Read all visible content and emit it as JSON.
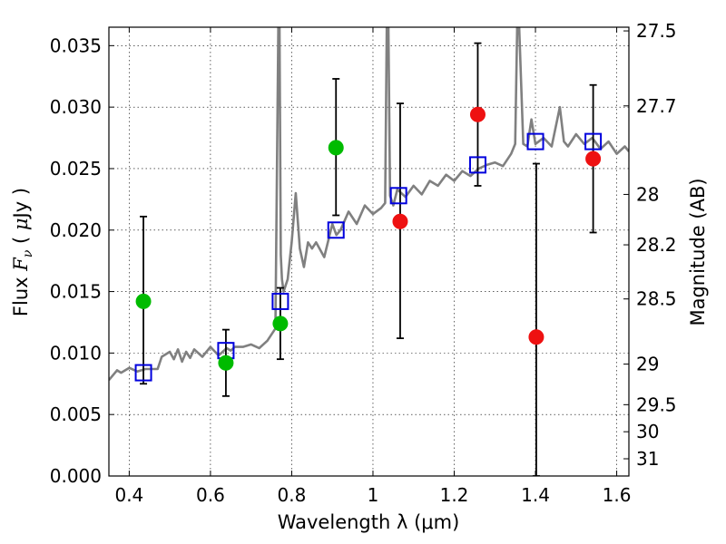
{
  "chart_data": {
    "type": "scatter",
    "xlabel": "Wavelength  λ (μm)",
    "ylabel": "Flux  F_ν  ( μJy )",
    "ylabel_right": "Magnitude (AB)",
    "xlim": [
      0.35,
      1.63
    ],
    "ylim": [
      0.0,
      0.0365
    ],
    "grid": true,
    "x_ticks": [
      0.4,
      0.6,
      0.8,
      1.0,
      1.2,
      1.4,
      1.6
    ],
    "x_tick_labels": [
      "0.4",
      "0.6",
      "0.8",
      "1",
      "1.2",
      "1.4",
      "1.6"
    ],
    "y_ticks": [
      0.0,
      0.005,
      0.01,
      0.015,
      0.02,
      0.025,
      0.03,
      0.035
    ],
    "y_tick_labels": [
      "0.000",
      "0.005",
      "0.010",
      "0.015",
      "0.020",
      "0.025",
      "0.030",
      "0.035"
    ],
    "right_ticks": [
      {
        "label": "27.5",
        "flux": 0.0362
      },
      {
        "label": "27.7",
        "flux": 0.0301
      },
      {
        "label": "28",
        "flux": 0.0229
      },
      {
        "label": "28.2",
        "flux": 0.0188
      },
      {
        "label": "28.5",
        "flux": 0.0144
      },
      {
        "label": "29",
        "flux": 0.0091
      },
      {
        "label": "29.5",
        "flux": 0.0058
      },
      {
        "label": "30",
        "flux": 0.0036
      },
      {
        "label": "31",
        "flux": 0.0014
      }
    ],
    "colors": {
      "green": "#00bb00",
      "red": "#ee1111",
      "square": "#0000dd",
      "sed": "#808080",
      "errorbar": "#000000"
    },
    "series": [
      {
        "kind": "green_points",
        "points": [
          {
            "x": 0.435,
            "y": 0.0142,
            "lo": 0.0075,
            "hi": 0.0211
          },
          {
            "x": 0.638,
            "y": 0.0092,
            "lo": 0.0065,
            "hi": 0.0119
          },
          {
            "x": 0.772,
            "y": 0.0124,
            "lo": 0.0095,
            "hi": 0.0153
          },
          {
            "x": 0.909,
            "y": 0.0267,
            "lo": 0.0212,
            "hi": 0.0323
          }
        ]
      },
      {
        "kind": "red_points",
        "points": [
          {
            "x": 1.067,
            "y": 0.0207,
            "lo": 0.0112,
            "hi": 0.0303
          },
          {
            "x": 1.258,
            "y": 0.0294,
            "lo": 0.0236,
            "hi": 0.0352
          },
          {
            "x": 1.402,
            "y": 0.0113,
            "lo": 0.0,
            "hi": 0.0254
          },
          {
            "x": 1.542,
            "y": 0.0258,
            "lo": 0.0198,
            "hi": 0.0318
          }
        ]
      },
      {
        "kind": "model_squares",
        "points": [
          {
            "x": 0.435,
            "y": 0.0084
          },
          {
            "x": 0.638,
            "y": 0.0102
          },
          {
            "x": 0.772,
            "y": 0.0142
          },
          {
            "x": 0.909,
            "y": 0.02
          },
          {
            "x": 1.063,
            "y": 0.0228
          },
          {
            "x": 1.258,
            "y": 0.0253
          },
          {
            "x": 1.4,
            "y": 0.0272
          },
          {
            "x": 1.542,
            "y": 0.0272
          }
        ]
      },
      {
        "kind": "model_sed",
        "x": [
          0.35,
          0.36,
          0.37,
          0.38,
          0.4,
          0.42,
          0.44,
          0.46,
          0.47,
          0.48,
          0.5,
          0.51,
          0.52,
          0.53,
          0.54,
          0.55,
          0.56,
          0.58,
          0.6,
          0.62,
          0.64,
          0.65,
          0.66,
          0.68,
          0.7,
          0.72,
          0.74,
          0.76,
          0.767,
          0.77,
          0.773,
          0.776,
          0.78,
          0.79,
          0.8,
          0.81,
          0.82,
          0.83,
          0.84,
          0.85,
          0.86,
          0.88,
          0.9,
          0.91,
          0.92,
          0.94,
          0.96,
          0.98,
          1.0,
          1.02,
          1.03,
          1.034,
          1.038,
          1.042,
          1.05,
          1.06,
          1.08,
          1.1,
          1.12,
          1.14,
          1.16,
          1.18,
          1.2,
          1.22,
          1.24,
          1.26,
          1.28,
          1.3,
          1.32,
          1.34,
          1.35,
          1.355,
          1.36,
          1.37,
          1.38,
          1.39,
          1.4,
          1.42,
          1.44,
          1.46,
          1.47,
          1.48,
          1.5,
          1.52,
          1.54,
          1.56,
          1.58,
          1.6,
          1.62,
          1.63
        ],
        "y": [
          0.0078,
          0.0082,
          0.0086,
          0.0084,
          0.0088,
          0.0085,
          0.0087,
          0.0087,
          0.0087,
          0.0097,
          0.0101,
          0.0095,
          0.0103,
          0.0093,
          0.0101,
          0.0096,
          0.0103,
          0.0097,
          0.0105,
          0.0098,
          0.0104,
          0.0102,
          0.0105,
          0.0105,
          0.0107,
          0.0104,
          0.011,
          0.012,
          0.0365,
          0.0365,
          0.018,
          0.016,
          0.015,
          0.016,
          0.019,
          0.023,
          0.0185,
          0.017,
          0.019,
          0.0185,
          0.019,
          0.0178,
          0.0205,
          0.0196,
          0.02,
          0.0215,
          0.0205,
          0.022,
          0.0213,
          0.0218,
          0.0222,
          0.0365,
          0.0365,
          0.0228,
          0.022,
          0.0233,
          0.0227,
          0.0236,
          0.0229,
          0.024,
          0.0236,
          0.0245,
          0.024,
          0.0248,
          0.0244,
          0.025,
          0.0253,
          0.0255,
          0.0252,
          0.0262,
          0.027,
          0.0365,
          0.0365,
          0.027,
          0.0268,
          0.029,
          0.027,
          0.0275,
          0.0268,
          0.03,
          0.0272,
          0.0268,
          0.0278,
          0.027,
          0.0275,
          0.0266,
          0.0272,
          0.0262,
          0.0268,
          0.0264
        ]
      }
    ]
  }
}
